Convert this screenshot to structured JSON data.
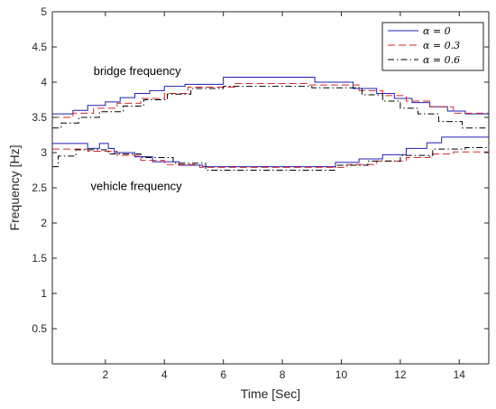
{
  "chart_data": {
    "type": "line",
    "xlabel": "Time [Sec]",
    "ylabel": "Frequency [Hz]",
    "xlim": [
      0.2,
      15
    ],
    "ylim": [
      0,
      5
    ],
    "xticks": [
      2,
      4,
      6,
      8,
      10,
      12,
      14
    ],
    "yticks": [
      0.5,
      1,
      1.5,
      2,
      2.5,
      3,
      3.5,
      4,
      4.5,
      5
    ],
    "grid": false,
    "legend_position": "top-right",
    "annotations": [
      {
        "text": "bridge frequency",
        "x": 1.6,
        "y": 4.1
      },
      {
        "text": "vehicle frequency",
        "x": 1.5,
        "y": 2.47
      }
    ],
    "series": [
      {
        "name": "α = 0",
        "color": "#1f1fb4",
        "dash": "solid",
        "lines": [
          {
            "label": "bridge frequency",
            "x": [
              0.2,
              0.9,
              0.9,
              1.4,
              1.4,
              2.0,
              2.0,
              2.5,
              2.5,
              3.0,
              3.0,
              3.5,
              3.5,
              4.0,
              4.0,
              4.7,
              4.7,
              6.0,
              6.0,
              9.1,
              9.1,
              10.4,
              10.4,
              11.2,
              11.2,
              11.8,
              11.8,
              12.4,
              12.4,
              13.0,
              13.0,
              13.6,
              13.6,
              14.2,
              14.2,
              15.0
            ],
            "y": [
              3.55,
              3.55,
              3.6,
              3.6,
              3.67,
              3.67,
              3.72,
              3.72,
              3.78,
              3.78,
              3.84,
              3.84,
              3.88,
              3.88,
              3.94,
              3.94,
              3.97,
              3.97,
              4.07,
              4.07,
              4.0,
              4.0,
              3.91,
              3.91,
              3.84,
              3.84,
              3.77,
              3.77,
              3.71,
              3.71,
              3.65,
              3.65,
              3.59,
              3.59,
              3.55,
              3.55
            ]
          },
          {
            "label": "vehicle frequency",
            "x": [
              0.2,
              1.4,
              1.4,
              1.8,
              1.8,
              2.1,
              2.1,
              2.3,
              2.3,
              3.0,
              3.0,
              3.6,
              3.6,
              4.5,
              4.5,
              5.3,
              5.3,
              9.8,
              9.8,
              10.6,
              10.6,
              11.4,
              11.4,
              12.2,
              12.2,
              12.9,
              12.9,
              13.4,
              13.4,
              15.0
            ],
            "y": [
              3.13,
              3.13,
              3.06,
              3.06,
              3.13,
              3.13,
              3.06,
              3.06,
              3.0,
              3.0,
              2.94,
              2.94,
              2.87,
              2.87,
              2.82,
              2.82,
              2.8,
              2.8,
              2.86,
              2.86,
              2.91,
              2.91,
              2.97,
              2.97,
              3.06,
              3.06,
              3.14,
              3.14,
              3.22,
              3.22
            ]
          }
        ]
      },
      {
        "name": "α = 0.3",
        "color": "#d62728",
        "dash": "dashed",
        "lines": [
          {
            "label": "bridge frequency",
            "x": [
              0.2,
              0.9,
              0.9,
              1.6,
              1.6,
              2.4,
              2.4,
              3.2,
              3.2,
              4.0,
              4.0,
              4.8,
              4.8,
              6.4,
              6.4,
              8.9,
              8.9,
              10.6,
              10.6,
              11.4,
              11.4,
              12.2,
              12.2,
              13.0,
              13.0,
              13.8,
              13.8,
              15.0
            ],
            "y": [
              3.5,
              3.5,
              3.56,
              3.56,
              3.63,
              3.63,
              3.7,
              3.7,
              3.77,
              3.77,
              3.84,
              3.84,
              3.93,
              3.93,
              3.98,
              3.98,
              3.96,
              3.96,
              3.88,
              3.88,
              3.81,
              3.81,
              3.73,
              3.73,
              3.65,
              3.65,
              3.56,
              3.56
            ]
          },
          {
            "label": "vehicle frequency",
            "x": [
              0.2,
              1.4,
              1.4,
              2.4,
              2.4,
              3.2,
              3.2,
              4.0,
              4.0,
              5.2,
              5.2,
              10.2,
              10.2,
              11.2,
              11.2,
              12.2,
              12.2,
              13.0,
              13.0,
              13.8,
              13.8,
              15.0
            ],
            "y": [
              3.05,
              3.05,
              3.02,
              3.02,
              2.96,
              2.96,
              2.89,
              2.89,
              2.83,
              2.83,
              2.79,
              2.79,
              2.83,
              2.83,
              2.88,
              2.88,
              2.93,
              2.93,
              2.98,
              2.98,
              3.01,
              3.01
            ]
          }
        ]
      },
      {
        "name": "α = 0.6",
        "color": "#000000",
        "dash": "dashdot",
        "lines": [
          {
            "label": "bridge frequency",
            "x": [
              0.2,
              0.5,
              0.5,
              1.1,
              1.1,
              1.8,
              1.8,
              2.6,
              2.6,
              3.3,
              3.3,
              4.1,
              4.1,
              4.9,
              4.9,
              6.0,
              6.0,
              9.0,
              9.0,
              10.7,
              10.7,
              11.4,
              11.4,
              12.0,
              12.0,
              12.6,
              12.6,
              13.3,
              13.3,
              14.1,
              14.1,
              15.0
            ],
            "y": [
              3.35,
              3.35,
              3.42,
              3.42,
              3.5,
              3.5,
              3.58,
              3.58,
              3.66,
              3.66,
              3.75,
              3.75,
              3.83,
              3.83,
              3.91,
              3.91,
              3.94,
              3.94,
              3.92,
              3.92,
              3.82,
              3.82,
              3.73,
              3.73,
              3.63,
              3.63,
              3.55,
              3.55,
              3.44,
              3.44,
              3.35,
              3.35
            ]
          },
          {
            "label": "vehicle frequency",
            "x": [
              0.2,
              0.4,
              0.4,
              1.0,
              1.0,
              2.1,
              2.1,
              3.2,
              3.2,
              4.3,
              4.3,
              5.4,
              5.4,
              9.8,
              9.8,
              10.9,
              10.9,
              12.0,
              12.0,
              13.1,
              13.1,
              14.2,
              14.2,
              15.0
            ],
            "y": [
              2.8,
              2.8,
              2.95,
              2.95,
              3.04,
              3.04,
              2.98,
              2.98,
              2.93,
              2.93,
              2.85,
              2.85,
              2.75,
              2.75,
              2.82,
              2.82,
              2.88,
              2.88,
              2.96,
              2.96,
              3.05,
              3.05,
              3.07,
              3.07
            ]
          }
        ]
      }
    ]
  }
}
